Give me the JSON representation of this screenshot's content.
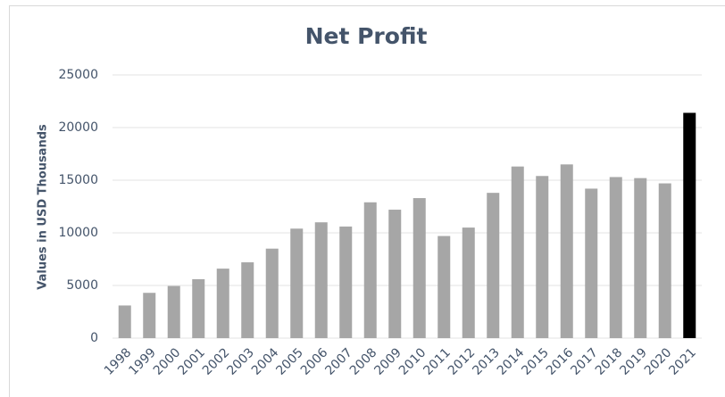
{
  "chart_data": {
    "type": "bar",
    "title": "Net Profit",
    "y_label": "Values in USD Thousands",
    "categories": [
      "1998",
      "1999",
      "2000",
      "2001",
      "2002",
      "2003",
      "2004",
      "2005",
      "2006",
      "2007",
      "2008",
      "2009",
      "2010",
      "2011",
      "2012",
      "2013",
      "2014",
      "2015",
      "2016",
      "2017",
      "2018",
      "2019",
      "2020",
      "2021"
    ],
    "values": [
      3100,
      4300,
      4950,
      5600,
      6600,
      7200,
      8500,
      10400,
      11000,
      10600,
      12900,
      12200,
      13300,
      9700,
      10500,
      13800,
      16300,
      15400,
      16500,
      14200,
      15300,
      15200,
      14700,
      21400
    ],
    "colors": [
      "#a6a6a6",
      "#a6a6a6",
      "#a6a6a6",
      "#a6a6a6",
      "#a6a6a6",
      "#a6a6a6",
      "#a6a6a6",
      "#a6a6a6",
      "#a6a6a6",
      "#a6a6a6",
      "#a6a6a6",
      "#a6a6a6",
      "#a6a6a6",
      "#a6a6a6",
      "#a6a6a6",
      "#a6a6a6",
      "#a6a6a6",
      "#a6a6a6",
      "#a6a6a6",
      "#a6a6a6",
      "#a6a6a6",
      "#a6a6a6",
      "#a6a6a6",
      "#000000"
    ],
    "ylim": [
      0,
      25000
    ],
    "yticks": [
      0,
      5000,
      10000,
      15000,
      20000,
      25000
    ],
    "grid": true
  }
}
